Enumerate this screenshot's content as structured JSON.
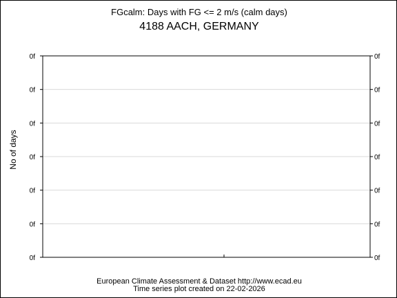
{
  "chart_data": {
    "type": "line",
    "title": "FGcalm: Days with FG <= 2 m/s (calm days)",
    "subtitle": "4188 AACH, GERMANY",
    "ylabel": "No of days",
    "xlabel": "",
    "yticks": [
      "0f",
      "0f",
      "0f",
      "0f",
      "0f",
      "0f",
      "0f"
    ],
    "xticks": [],
    "series": [],
    "grid": true,
    "legend": "none"
  },
  "footer": {
    "line1": "European Climate Assessment & Dataset  http://www.ecad.eu",
    "line2": "Time series plot created on 22-02-2026"
  },
  "colors": {
    "axis": "#000000",
    "grid": "#d9d9d9",
    "background": "#ffffff"
  }
}
